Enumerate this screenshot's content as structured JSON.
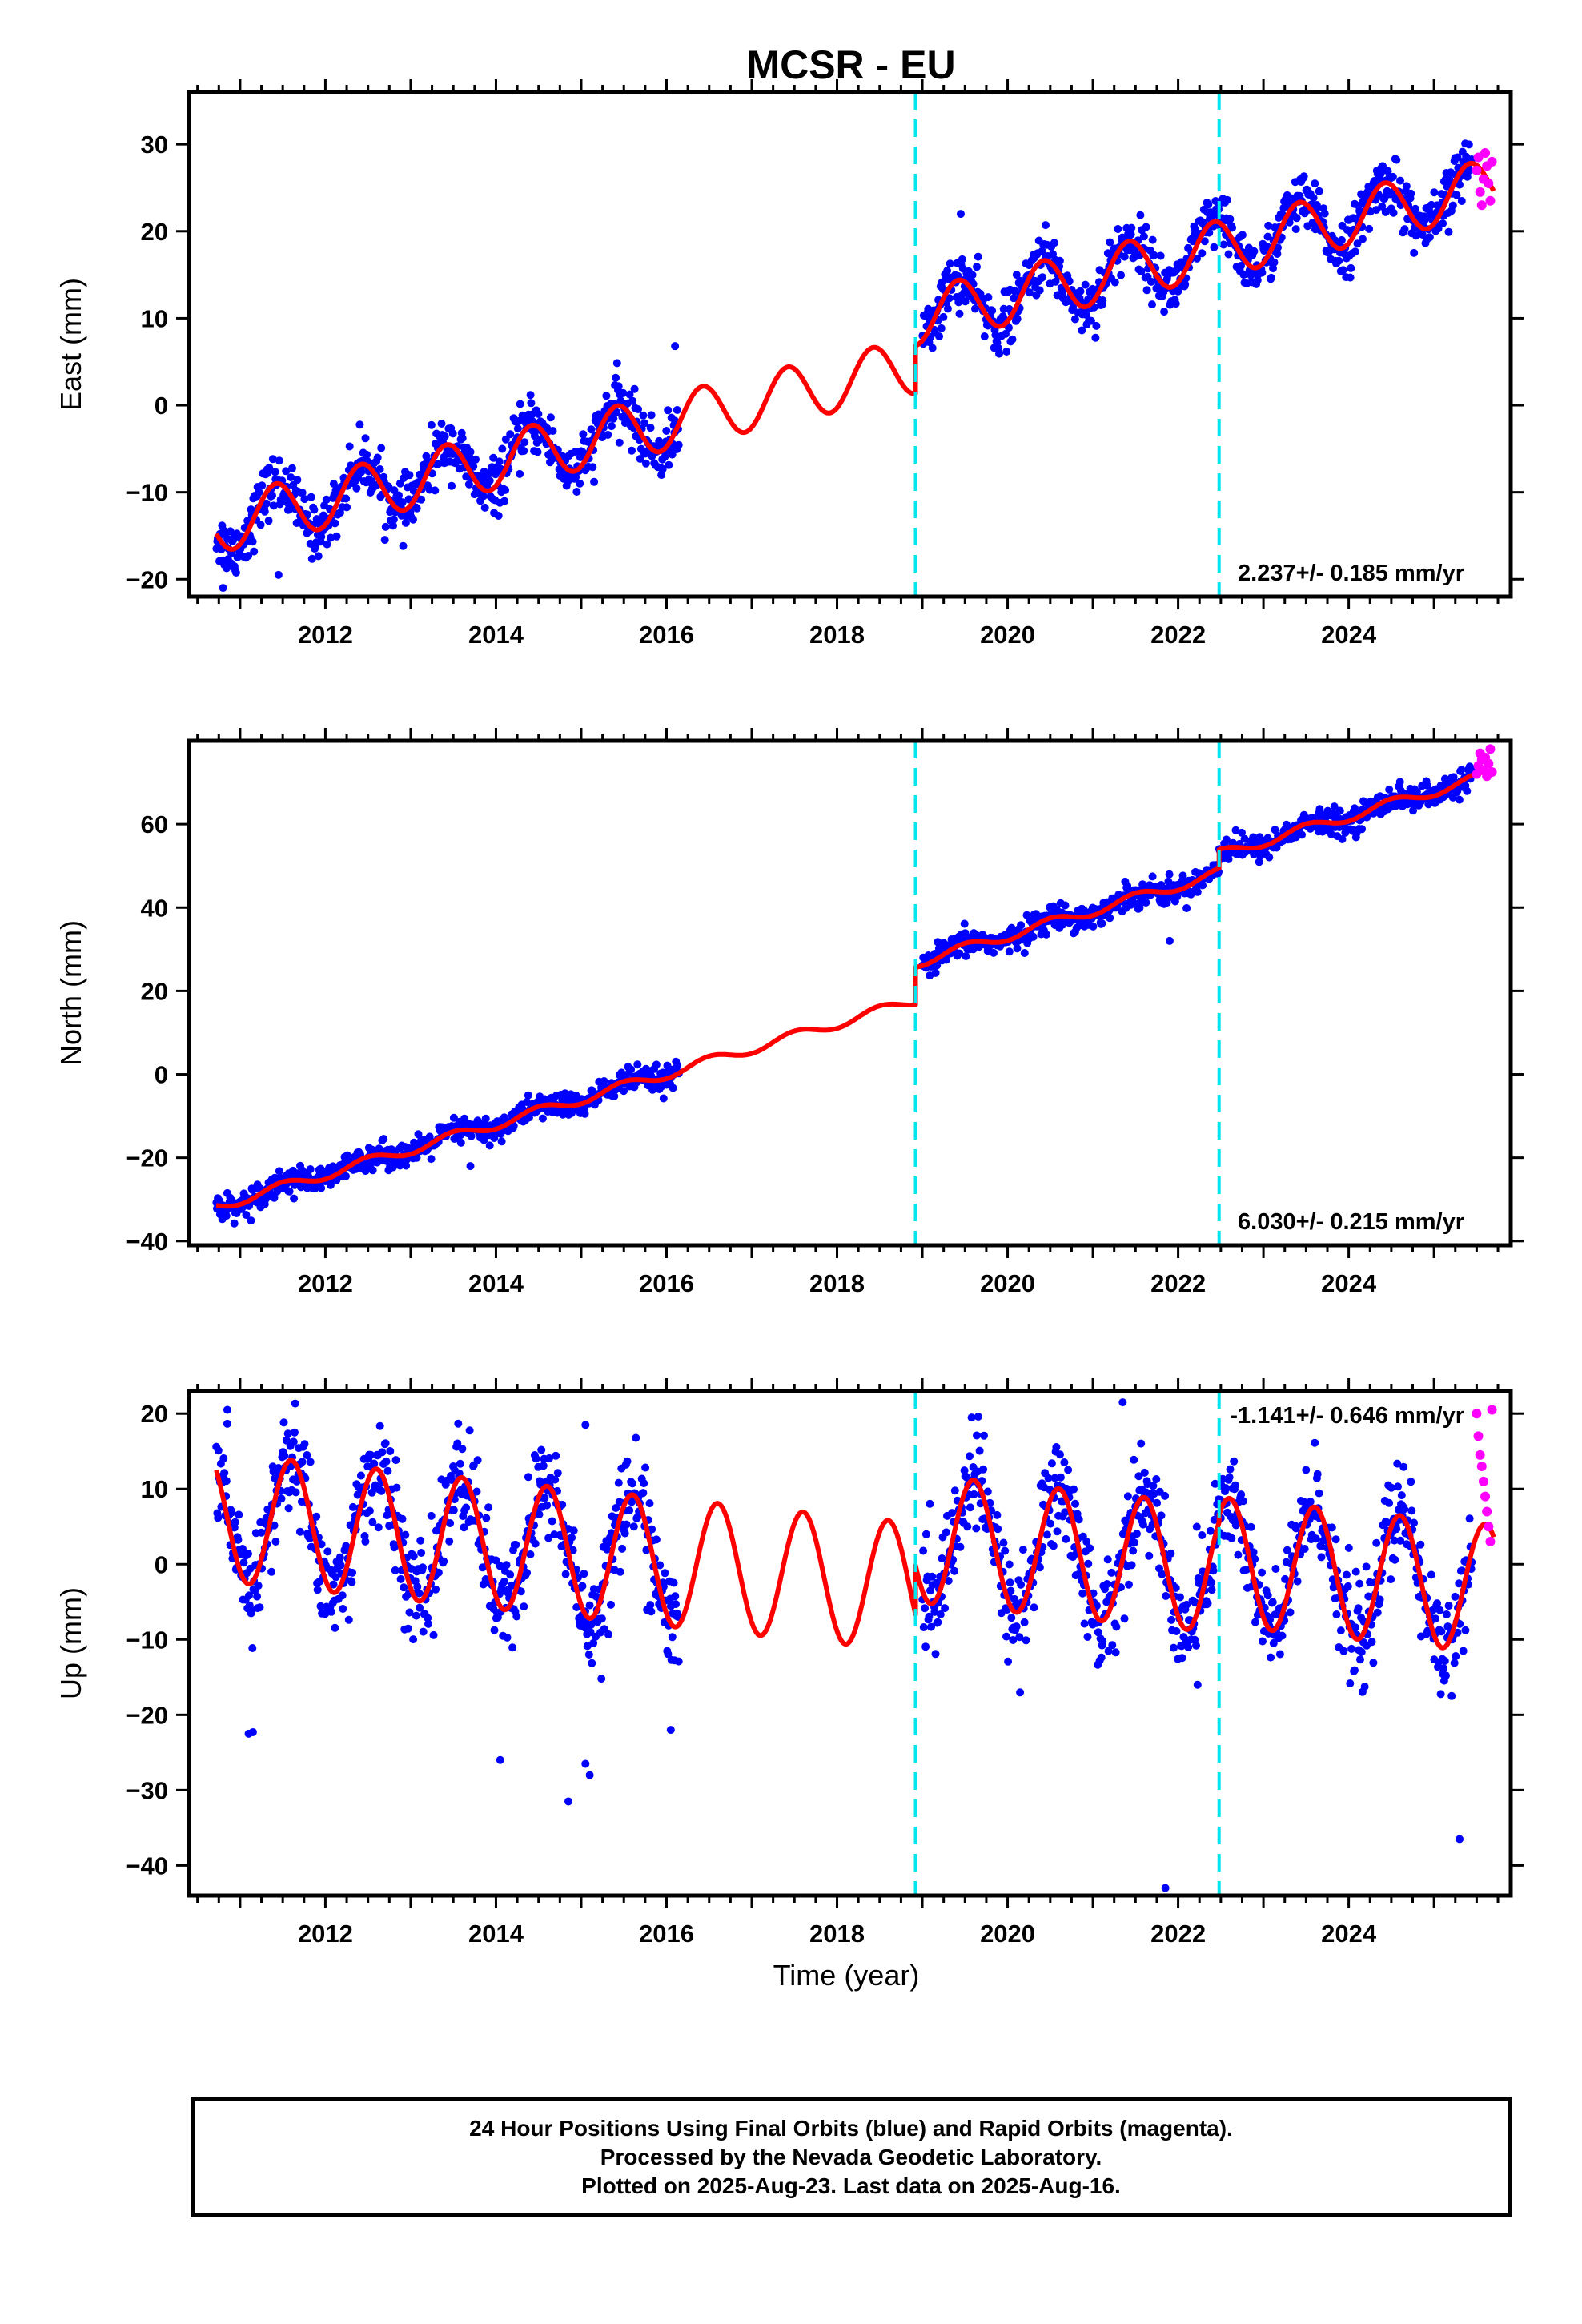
{
  "title": "MCSR - EU",
  "chart_data": {
    "type": "scatter",
    "x_range": [
      2010.4,
      2025.9
    ],
    "x_ticks": [
      2012,
      2014,
      2016,
      2018,
      2020,
      2022,
      2024
    ],
    "minor_tick_step": 0.25,
    "grid": false,
    "steps": [
      2018.92,
      2022.48
    ],
    "final_orbit_end": 2025.45,
    "series_colors": {
      "final_orbits": "#0000ff",
      "rapid_orbits": "#ff00ff",
      "model": "#ff0000",
      "steps": "#00e5ee"
    },
    "panels": [
      {
        "ylabel": "East (mm)",
        "ylim": [
          -22,
          36
        ],
        "yticks": [
          -20,
          -10,
          0,
          10,
          20,
          30
        ],
        "rate_label": "2.237+/- 0.185 mm/yr",
        "rate_position": "bottom-right",
        "trend_anchor": 2018,
        "model_params": {
          "offset": 2.5,
          "slope": 2.237,
          "amp": 3.2,
          "phase_peak": 0.42,
          "jumps": [
            5.5,
            0
          ]
        },
        "final_orbits": {
          "segments": [
            [
              2010.72,
              2016.15
            ],
            [
              2019.0,
              2025.45
            ]
          ],
          "scatter_sd": 1.6,
          "count": 1400,
          "outliers": [
            [
              2016.1,
              6.8
            ],
            [
              2019.45,
              22
            ],
            [
              2010.8,
              -21
            ],
            [
              2011.45,
              -19.5
            ]
          ]
        },
        "rapid_orbits": [
          [
            2025.5,
            27
          ],
          [
            2025.52,
            28.5
          ],
          [
            2025.54,
            24.5
          ],
          [
            2025.56,
            23
          ],
          [
            2025.58,
            26
          ],
          [
            2025.6,
            29
          ],
          [
            2025.62,
            27.5
          ],
          [
            2025.64,
            25.5
          ],
          [
            2025.66,
            23.5
          ],
          [
            2025.68,
            28
          ]
        ]
      },
      {
        "ylabel": "North (mm)",
        "ylim": [
          -41,
          80
        ],
        "yticks": [
          -40,
          -20,
          0,
          20,
          40,
          60
        ],
        "rate_label": "6.030+/- 0.215 mm/yr",
        "rate_position": "bottom-right",
        "trend_anchor": 2018,
        "model_params": {
          "offset": 12.2,
          "slope": 6.03,
          "amp": 1.2,
          "phase_peak": 0.5,
          "jumps": [
            9.0,
            4.5
          ]
        },
        "final_orbits": {
          "segments": [
            [
              2010.72,
              2016.15
            ],
            [
              2019.0,
              2025.45
            ]
          ],
          "scatter_sd": 1.5,
          "count": 1400,
          "outliers": [
            [
              2021.9,
              32
            ],
            [
              2013.7,
              -22
            ]
          ]
        },
        "rapid_orbits": [
          [
            2025.5,
            72
          ],
          [
            2025.52,
            74
          ],
          [
            2025.54,
            77
          ],
          [
            2025.56,
            75.5
          ],
          [
            2025.58,
            73
          ],
          [
            2025.6,
            76
          ],
          [
            2025.62,
            71.5
          ],
          [
            2025.64,
            74.5
          ],
          [
            2025.66,
            78
          ],
          [
            2025.68,
            72.5
          ]
        ]
      },
      {
        "ylabel": "Up (mm)",
        "ylim": [
          -44,
          23
        ],
        "yticks": [
          -40,
          -30,
          -20,
          -10,
          0,
          10,
          20
        ],
        "rate_label": "-1.141+/- 0.646 mm/yr",
        "rate_position": "top-right",
        "trend_anchor": 2018,
        "model_params": {
          "offset": -2.0,
          "slope": -1.141,
          "amp": 8.5,
          "phase_peak": 0.6,
          "jumps": [
            6.5,
            1.0
          ]
        },
        "final_orbits": {
          "segments": [
            [
              2010.72,
              2016.15
            ],
            [
              2019.0,
              2025.45
            ]
          ],
          "scatter_sd": 3.5,
          "count": 1400,
          "outliers": [
            [
              2010.85,
              20.5
            ],
            [
              2011.1,
              -22.5
            ],
            [
              2011.15,
              -22.3
            ],
            [
              2014.05,
              -26
            ],
            [
              2014.85,
              -31.5
            ],
            [
              2015.05,
              -26.5
            ],
            [
              2015.1,
              -28
            ],
            [
              2015.05,
              18.5
            ],
            [
              2021.35,
              21.5
            ],
            [
              2021.85,
              -43
            ],
            [
              2025.3,
              -36.5
            ],
            [
              2016.05,
              -22
            ]
          ]
        },
        "rapid_orbits": [
          [
            2025.5,
            20
          ],
          [
            2025.52,
            17
          ],
          [
            2025.54,
            14.5
          ],
          [
            2025.56,
            13
          ],
          [
            2025.58,
            11
          ],
          [
            2025.6,
            9
          ],
          [
            2025.62,
            7
          ],
          [
            2025.64,
            5
          ],
          [
            2025.66,
            3
          ],
          [
            2025.68,
            20.5
          ]
        ]
      }
    ],
    "xlabel": "Time (year)"
  },
  "footer": {
    "line1": "24 Hour Positions Using Final Orbits (blue) and Rapid Orbits (magenta).",
    "line2": "Processed by the Nevada Geodetic Laboratory.",
    "line3": "Plotted on 2025-Aug-23. Last data on 2025-Aug-16."
  }
}
